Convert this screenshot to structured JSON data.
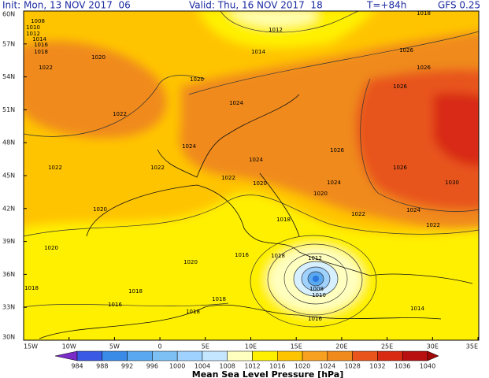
{
  "header": {
    "init": "Init: Mon, 13 NOV 2017  06",
    "valid": "Valid: Thu, 16 NOV 2017  18",
    "step": "T=+84h",
    "model": "GFS 0.25"
  },
  "lat_labels": [
    "60N",
    "57N",
    "54N",
    "51N",
    "48N",
    "45N",
    "42N",
    "39N",
    "36N",
    "33N",
    "30N"
  ],
  "lon_labels": [
    "15W",
    "10W",
    "5W",
    "0",
    "5E",
    "10E",
    "15E",
    "20E",
    "25E",
    "30E",
    "35E"
  ],
  "isobar_labels": [
    "1008",
    "1010",
    "1012",
    "1014",
    "1016",
    "1018",
    "1020",
    "1022",
    "1020",
    "1024",
    "1022",
    "1024",
    "1022",
    "1022",
    "1024",
    "1026",
    "1026",
    "1026",
    "1026",
    "1026",
    "1018",
    "1030",
    "1024",
    "1022",
    "1020",
    "1020",
    "1018",
    "1016",
    "1018",
    "1018",
    "1014",
    "1016",
    "1012",
    "1010",
    "1008",
    "1012",
    "1014",
    "1020",
    "1022",
    "1020",
    "1024",
    "1022",
    "1018",
    "1016",
    "1020",
    "1018",
    "1018"
  ],
  "legend": {
    "ticks": [
      984,
      988,
      992,
      996,
      1000,
      1004,
      1008,
      1012,
      1016,
      1020,
      1024,
      1028,
      1032,
      1036,
      1040
    ],
    "title": "Mean Sea Level Pressure [hPa]"
  }
}
